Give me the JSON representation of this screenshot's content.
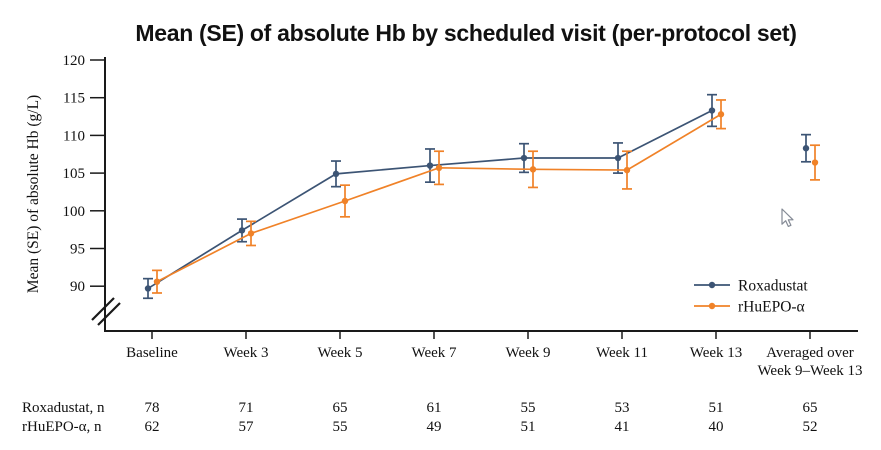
{
  "chart_data": {
    "type": "line",
    "title": "Mean (SE) of absolute Hb by scheduled visit (per-protocol set)",
    "ylabel": "Mean (SE) of absolute Hb (g/L)",
    "ylim": [
      90,
      120
    ],
    "y_axis_break": true,
    "grid": false,
    "yticks": [
      90,
      95,
      100,
      105,
      110,
      115,
      120
    ],
    "categories": [
      "Baseline",
      "Week 3",
      "Week 5",
      "Week 7",
      "Week 9",
      "Week 11",
      "Week 13",
      "Averaged over Week 9–Week 13"
    ],
    "x_label_lines": [
      [
        "Baseline"
      ],
      [
        "Week 3"
      ],
      [
        "Week 5"
      ],
      [
        "Week 7"
      ],
      [
        "Week 9"
      ],
      [
        "Week 11"
      ],
      [
        "Week 13"
      ],
      [
        "Averaged over",
        "Week 9–Week 13"
      ]
    ],
    "last_point_detached": true,
    "legend_position": "inside lower right",
    "error_bars": "SE",
    "series": [
      {
        "name": "Roxadustat",
        "color": "#3c5474",
        "mean": [
          89.7,
          97.4,
          104.9,
          106.0,
          107.0,
          107.0,
          113.3,
          108.3
        ],
        "se": [
          1.3,
          1.5,
          1.7,
          2.2,
          1.9,
          2.0,
          2.1,
          1.8
        ]
      },
      {
        "name": "rHuEPO-α",
        "color": "#f08228",
        "mean": [
          90.6,
          97.0,
          101.3,
          105.7,
          105.5,
          105.4,
          112.8,
          106.4
        ],
        "se": [
          1.5,
          1.6,
          2.1,
          2.2,
          2.4,
          2.5,
          1.9,
          2.3
        ]
      }
    ]
  },
  "counts_table": {
    "rows": [
      {
        "label": "Roxadustat, n",
        "values": [
          "78",
          "71",
          "65",
          "61",
          "55",
          "53",
          "51",
          "65"
        ]
      },
      {
        "label": "rHuEPO-α, n",
        "values": [
          "62",
          "57",
          "55",
          "49",
          "51",
          "41",
          "40",
          "52"
        ]
      }
    ]
  },
  "axis_color": "#1a1a1a",
  "text_color": "#111111"
}
